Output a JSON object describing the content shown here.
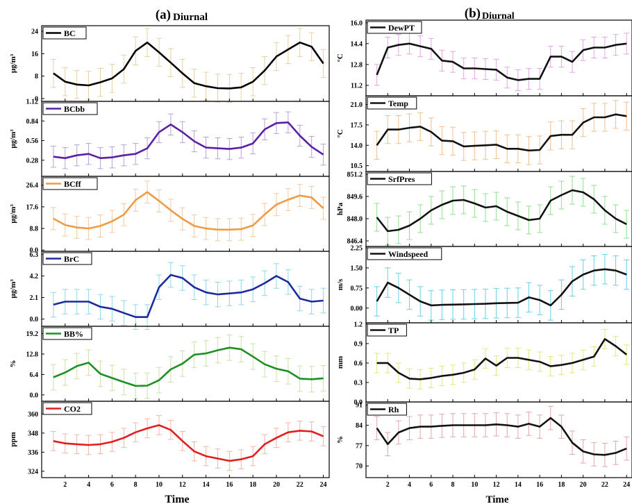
{
  "figure": {
    "left_title_prefix": "(a)",
    "left_title": "Diurnal",
    "right_title_prefix": "(b)",
    "right_title": "Diurnal",
    "left_xlabel": "Time",
    "right_xlabel": "Time"
  },
  "chart_data": [
    {
      "type": "line",
      "column": "left",
      "legend": "BC",
      "ylabel": "μg/m³",
      "color": "#000000",
      "err_color": "#e8cfa0",
      "ylim": [
        -1,
        26
      ],
      "yticks": [
        0,
        8,
        16,
        24
      ],
      "xlim": [
        0,
        24.5
      ],
      "xticks": [
        2,
        4,
        6,
        8,
        10,
        12,
        14,
        16,
        18,
        20,
        22,
        24
      ],
      "x": [
        1,
        2,
        3,
        4,
        5,
        6,
        7,
        8,
        9,
        10,
        11,
        12,
        13,
        14,
        15,
        16,
        17,
        18,
        19,
        20,
        21,
        22,
        23,
        24
      ],
      "y": [
        9,
        6,
        5,
        4.7,
        5.8,
        7.2,
        10.5,
        17,
        20,
        16.5,
        12.8,
        9,
        5.5,
        4.4,
        3.7,
        3.6,
        4,
        6,
        10,
        15,
        17.5,
        20,
        18.5,
        12.5
      ],
      "err": [
        5,
        5,
        5,
        5,
        5,
        5,
        5,
        5,
        5,
        5,
        5,
        5,
        5,
        5,
        5,
        5,
        5,
        5,
        5,
        5,
        5,
        5,
        5,
        5
      ]
    },
    {
      "type": "line",
      "column": "left",
      "legend": "BCbb",
      "ylabel": "μg/m³",
      "color": "#5b1fa6",
      "err_color": "#b7a2da",
      "ylim": [
        0.05,
        1.12
      ],
      "yticks": [
        0.28,
        0.56,
        0.84,
        1.12
      ],
      "ytick_labels": [
        "0.28",
        "0.56",
        "0.84",
        "1.12"
      ],
      "xlim": [
        0,
        24.5
      ],
      "xticks": [
        2,
        4,
        6,
        8,
        10,
        12,
        14,
        16,
        18,
        20,
        22,
        24
      ],
      "x": [
        1,
        2,
        3,
        4,
        5,
        6,
        7,
        8,
        9,
        10,
        11,
        12,
        13,
        14,
        15,
        16,
        17,
        18,
        19,
        20,
        21,
        22,
        23,
        24
      ],
      "y": [
        0.33,
        0.31,
        0.35,
        0.37,
        0.31,
        0.32,
        0.35,
        0.37,
        0.45,
        0.68,
        0.79,
        0.68,
        0.55,
        0.46,
        0.45,
        0.44,
        0.46,
        0.52,
        0.72,
        0.81,
        0.82,
        0.63,
        0.47,
        0.36
      ],
      "err": [
        0.15,
        0.15,
        0.15,
        0.15,
        0.15,
        0.15,
        0.15,
        0.15,
        0.15,
        0.15,
        0.15,
        0.15,
        0.15,
        0.15,
        0.15,
        0.15,
        0.15,
        0.15,
        0.15,
        0.15,
        0.15,
        0.15,
        0.15,
        0.15
      ]
    },
    {
      "type": "line",
      "column": "left",
      "legend": "BCff",
      "ylabel": "μg/m³",
      "color": "#ee9b45",
      "err_color": "#f3c9a0",
      "ylim": [
        -0.5,
        30
      ],
      "yticks": [
        0,
        8.8,
        17.6,
        26.4
      ],
      "ytick_labels": [
        "0.0",
        "8.8",
        "17.6",
        "26.4"
      ],
      "xlim": [
        0,
        24.5
      ],
      "xticks": [
        2,
        4,
        6,
        8,
        10,
        12,
        14,
        16,
        18,
        20,
        22,
        24
      ],
      "x": [
        1,
        2,
        3,
        4,
        5,
        6,
        7,
        8,
        9,
        10,
        11,
        12,
        13,
        14,
        15,
        16,
        17,
        18,
        19,
        20,
        21,
        22,
        23,
        24
      ],
      "y": [
        12.8,
        10.2,
        9.2,
        8.8,
        9.8,
        11.7,
        14.4,
        20.3,
        23.6,
        20,
        16.2,
        12.7,
        9.8,
        8.8,
        8.3,
        8.3,
        8.5,
        10,
        14.5,
        18.5,
        20.5,
        22.2,
        21.4,
        17
      ],
      "err": [
        4.5,
        4.5,
        4.5,
        4.5,
        4.5,
        4.5,
        4.5,
        4.5,
        4.5,
        4.5,
        4.5,
        4.5,
        4.5,
        4.5,
        4.5,
        4.5,
        4.5,
        4.5,
        4.5,
        4.5,
        4.5,
        4.5,
        4.5,
        4.5
      ]
    },
    {
      "type": "line",
      "column": "left",
      "legend": "BrC",
      "ylabel": "μg/m³",
      "color": "#1b2a9e",
      "err_color": "#8fd6ec",
      "ylim": [
        -0.7,
        6.6
      ],
      "yticks": [
        0,
        2.1,
        4.2,
        6.3
      ],
      "ytick_labels": [
        "0.0",
        "2.1",
        "4.2",
        "6.3"
      ],
      "xlim": [
        0,
        24.5
      ],
      "xticks": [
        2,
        4,
        6,
        8,
        10,
        12,
        14,
        16,
        18,
        20,
        22,
        24
      ],
      "x": [
        1,
        2,
        3,
        4,
        5,
        6,
        7,
        8,
        9,
        10,
        11,
        12,
        13,
        14,
        15,
        16,
        17,
        18,
        19,
        20,
        21,
        22,
        23,
        24
      ],
      "y": [
        1.4,
        1.7,
        1.7,
        1.7,
        1.2,
        1,
        0.6,
        0.2,
        0.2,
        3.1,
        4.3,
        4,
        3.1,
        2.6,
        2.4,
        2.5,
        2.6,
        2.9,
        3.5,
        4.2,
        3.6,
        2,
        1.7,
        1.8
      ],
      "err": [
        1.2,
        1.2,
        1.2,
        1.2,
        1.2,
        1.2,
        1.2,
        1.2,
        1.2,
        1.2,
        1.2,
        1.2,
        1.2,
        1.2,
        1.2,
        1.2,
        1.2,
        1.2,
        1.2,
        1.2,
        1.2,
        1.2,
        1.2,
        1.2
      ]
    },
    {
      "type": "line",
      "column": "left",
      "legend": "BB%",
      "ylabel": "%",
      "color": "#1e8f22",
      "err_color": "#c8e3a8",
      "ylim": [
        -2,
        21.5
      ],
      "yticks": [
        0,
        6.4,
        12.8,
        19.2
      ],
      "ytick_labels": [
        "0.0",
        "6.4",
        "12.8",
        "19.2"
      ],
      "xlim": [
        0,
        24.5
      ],
      "xticks": [
        2,
        4,
        6,
        8,
        10,
        12,
        14,
        16,
        18,
        20,
        22,
        24
      ],
      "x": [
        1,
        2,
        3,
        4,
        5,
        6,
        7,
        8,
        9,
        10,
        11,
        12,
        13,
        14,
        15,
        16,
        17,
        18,
        19,
        20,
        21,
        22,
        23,
        24
      ],
      "y": [
        5.5,
        7,
        9,
        10.1,
        6.6,
        5.3,
        4,
        2.8,
        2.9,
        4.6,
        8,
        9.8,
        12.6,
        13,
        14,
        14.8,
        14.3,
        12,
        9.6,
        8.2,
        7.4,
        5.1,
        4.9,
        5.2
      ],
      "err": [
        4,
        4,
        4,
        4,
        4,
        4,
        4,
        4,
        4,
        4,
        4,
        4,
        4,
        4,
        4,
        4,
        4,
        4,
        4,
        4,
        4,
        4,
        4,
        4
      ]
    },
    {
      "type": "line",
      "column": "left",
      "legend": "CO2",
      "ylabel": "ppm",
      "color": "#e01e1e",
      "err_color": "#f1b6a3",
      "ylim": [
        320,
        368
      ],
      "yticks": [
        324,
        336,
        348,
        360
      ],
      "xlim": [
        0,
        24.5
      ],
      "xticks": [
        2,
        4,
        6,
        8,
        10,
        12,
        14,
        16,
        18,
        20,
        22,
        24
      ],
      "x": [
        1,
        2,
        3,
        4,
        5,
        6,
        7,
        8,
        9,
        10,
        11,
        12,
        13,
        14,
        15,
        16,
        17,
        18,
        19,
        20,
        21,
        22,
        23,
        24
      ],
      "y": [
        343,
        341.5,
        341,
        340.5,
        341,
        342.5,
        345,
        348.5,
        351,
        353,
        350,
        343,
        336.5,
        333.5,
        332,
        330.5,
        331.5,
        333.5,
        341,
        345,
        348.5,
        349.5,
        349,
        346
      ],
      "err": [
        6,
        6,
        6,
        6,
        6,
        6,
        6,
        6,
        6,
        6,
        6,
        6,
        6,
        6,
        6,
        6,
        6,
        6,
        6,
        6,
        6,
        6,
        6,
        6
      ]
    },
    {
      "type": "line",
      "column": "right",
      "legend": "DewPT",
      "ylabel": "°C",
      "color": "#111111",
      "err_color": "#e2a6e4",
      "ylim": [
        10.4,
        16.2
      ],
      "yticks": [
        11.2,
        12.8,
        14.4,
        16
      ],
      "ytick_labels": [
        "11.2",
        "12.8",
        "14.4",
        "16.0"
      ],
      "xlim": [
        0,
        24.5
      ],
      "xticks": [
        2,
        4,
        6,
        8,
        10,
        12,
        14,
        16,
        18,
        20,
        22,
        24
      ],
      "x": [
        1,
        2,
        3,
        4,
        5,
        6,
        7,
        8,
        9,
        10,
        11,
        12,
        13,
        14,
        15,
        16,
        17,
        18,
        19,
        20,
        21,
        22,
        23,
        24
      ],
      "y": [
        12,
        14.1,
        14.3,
        14.4,
        14.2,
        14,
        13.1,
        13,
        12.5,
        12.5,
        12.45,
        12.4,
        11.8,
        11.6,
        11.7,
        11.7,
        13.4,
        13.4,
        13,
        13.9,
        14.1,
        14.1,
        14.3,
        14.4
      ],
      "err": [
        0.8,
        0.8,
        0.8,
        0.8,
        0.8,
        0.8,
        0.8,
        0.8,
        0.8,
        0.8,
        0.8,
        0.8,
        0.8,
        0.8,
        0.8,
        0.8,
        0.8,
        0.8,
        0.8,
        0.8,
        0.8,
        0.8,
        0.8,
        0.8
      ]
    },
    {
      "type": "line",
      "column": "right",
      "legend": "Temp",
      "ylabel": "°C",
      "color": "#111111",
      "err_color": "#f0c08a",
      "ylim": [
        9.5,
        22.5
      ],
      "yticks": [
        10.5,
        14,
        17.5,
        21
      ],
      "ytick_labels": [
        "10.5",
        "14.0",
        "17.5",
        "21.0"
      ],
      "xlim": [
        0,
        24.5
      ],
      "xticks": [
        2,
        4,
        6,
        8,
        10,
        12,
        14,
        16,
        18,
        20,
        22,
        24
      ],
      "x": [
        1,
        2,
        3,
        4,
        5,
        6,
        7,
        8,
        9,
        10,
        11,
        12,
        13,
        14,
        15,
        16,
        17,
        18,
        19,
        20,
        21,
        22,
        23,
        24
      ],
      "y": [
        14,
        16.7,
        16.7,
        17,
        17.2,
        16.3,
        14.8,
        14.7,
        13.8,
        13.9,
        14,
        14.1,
        13.4,
        13.4,
        13.1,
        13.2,
        15.6,
        15.8,
        15.8,
        17.9,
        18.8,
        18.8,
        19.3,
        19
      ],
      "err": [
        2.4,
        2.4,
        2.4,
        2.4,
        2.4,
        2.4,
        2.4,
        2.4,
        2.4,
        2.4,
        2.4,
        2.4,
        2.4,
        2.4,
        2.4,
        2.4,
        2.4,
        2.4,
        2.4,
        2.4,
        2.4,
        2.4,
        2.4,
        2.4
      ]
    },
    {
      "type": "line",
      "column": "right",
      "legend": "SrfPres",
      "ylabel": "hPa",
      "color": "#111111",
      "err_color": "#8fe08f",
      "ylim": [
        846,
        851.4
      ],
      "yticks": [
        846.4,
        848,
        849.6,
        851.2
      ],
      "ytick_labels": [
        "846.4",
        "848.0",
        "849.6",
        "851.2"
      ],
      "xlim": [
        0,
        24.5
      ],
      "xticks": [
        2,
        4,
        6,
        8,
        10,
        12,
        14,
        16,
        18,
        20,
        22,
        24
      ],
      "x": [
        1,
        2,
        3,
        4,
        5,
        6,
        7,
        8,
        9,
        10,
        11,
        12,
        13,
        14,
        15,
        16,
        17,
        18,
        19,
        20,
        21,
        22,
        23,
        24
      ],
      "y": [
        848.1,
        847.1,
        847.2,
        847.5,
        848.0,
        848.6,
        849.0,
        849.3,
        849.35,
        849.1,
        848.8,
        848.9,
        848.5,
        848.2,
        847.9,
        848.0,
        849.3,
        849.7,
        850.05,
        849.9,
        849.4,
        848.6,
        848.0,
        847.6
      ],
      "err": [
        1,
        1,
        1,
        1,
        1,
        1,
        1,
        1,
        1,
        1,
        1,
        1,
        1,
        1,
        1,
        1,
        1,
        1,
        1,
        1,
        1,
        1,
        1,
        1
      ]
    },
    {
      "type": "line",
      "column": "right",
      "legend": "Windspeed",
      "ylabel": "m/s",
      "color": "#111111",
      "err_color": "#62d2e8",
      "ylim": [
        -0.55,
        2.3
      ],
      "yticks": [
        0,
        0.75,
        1.5,
        2.25
      ],
      "ytick_labels": [
        "0.00",
        "0.75",
        "1.50",
        "2.25"
      ],
      "xlim": [
        0,
        24.5
      ],
      "xticks": [
        2,
        4,
        6,
        8,
        10,
        12,
        14,
        16,
        18,
        20,
        22,
        24
      ],
      "x": [
        1,
        2,
        3,
        4,
        5,
        6,
        7,
        8,
        9,
        10,
        11,
        12,
        13,
        14,
        15,
        16,
        17,
        18,
        19,
        20,
        21,
        22,
        23,
        24
      ],
      "y": [
        0.25,
        0.95,
        0.75,
        0.5,
        0.25,
        0.1,
        0.12,
        0.13,
        0.14,
        0.15,
        0.16,
        0.18,
        0.19,
        0.2,
        0.4,
        0.3,
        0.1,
        0.5,
        1,
        1.25,
        1.4,
        1.45,
        1.4,
        1.25
      ],
      "err": [
        0.55,
        0.55,
        0.55,
        0.55,
        0.55,
        0.55,
        0.55,
        0.55,
        0.55,
        0.55,
        0.55,
        0.55,
        0.55,
        0.55,
        0.55,
        0.55,
        0.55,
        0.55,
        0.55,
        0.55,
        0.55,
        0.55,
        0.55,
        0.55
      ]
    },
    {
      "type": "line",
      "column": "right",
      "legend": "TP",
      "ylabel": "mm",
      "color": "#111111",
      "err_color": "#e6e67a",
      "ylim": [
        0,
        1.22
      ],
      "yticks": [
        0,
        0.3,
        0.6,
        0.9,
        1.2
      ],
      "ytick_labels": [
        "0.0",
        "0.3",
        "0.6",
        "0.9",
        "1.2"
      ],
      "xlim": [
        0,
        24.5
      ],
      "xticks": [
        2,
        4,
        6,
        8,
        10,
        12,
        14,
        16,
        18,
        20,
        22,
        24
      ],
      "x": [
        1,
        2,
        3,
        4,
        5,
        6,
        7,
        8,
        9,
        10,
        11,
        12,
        13,
        14,
        15,
        16,
        17,
        18,
        19,
        20,
        21,
        22,
        23,
        24
      ],
      "y": [
        0.6,
        0.6,
        0.45,
        0.36,
        0.35,
        0.37,
        0.4,
        0.42,
        0.45,
        0.5,
        0.67,
        0.56,
        0.68,
        0.68,
        0.65,
        0.62,
        0.55,
        0.57,
        0.6,
        0.65,
        0.7,
        0.97,
        0.86,
        0.73
      ],
      "err": [
        0.15,
        0.15,
        0.15,
        0.15,
        0.15,
        0.15,
        0.15,
        0.15,
        0.15,
        0.15,
        0.15,
        0.15,
        0.15,
        0.15,
        0.15,
        0.15,
        0.15,
        0.15,
        0.15,
        0.15,
        0.15,
        0.15,
        0.15,
        0.15
      ]
    },
    {
      "type": "line",
      "column": "right",
      "legend": "Rh",
      "ylabel": "%",
      "color": "#111111",
      "err_color": "#e0a7a7",
      "ylim": [
        66,
        92
      ],
      "yticks": [
        70,
        77,
        84,
        91
      ],
      "xlim": [
        0,
        24.5
      ],
      "xticks": [
        2,
        4,
        6,
        8,
        10,
        12,
        14,
        16,
        18,
        20,
        22,
        24
      ],
      "x": [
        1,
        2,
        3,
        4,
        5,
        6,
        7,
        8,
        9,
        10,
        11,
        12,
        13,
        14,
        15,
        16,
        17,
        18,
        19,
        20,
        21,
        22,
        23,
        24
      ],
      "y": [
        83,
        77.5,
        81.5,
        83,
        83.5,
        83.5,
        83.8,
        84,
        84,
        84,
        84,
        84.3,
        84,
        83.5,
        84.5,
        83.5,
        86.5,
        83.5,
        78,
        75,
        74,
        73.8,
        74.5,
        76
      ],
      "err": [
        4,
        4,
        4,
        4,
        4,
        4,
        4,
        4,
        4,
        4,
        4,
        4,
        4,
        4,
        4,
        4,
        4,
        4,
        4,
        4,
        4,
        4,
        4,
        4
      ]
    }
  ]
}
